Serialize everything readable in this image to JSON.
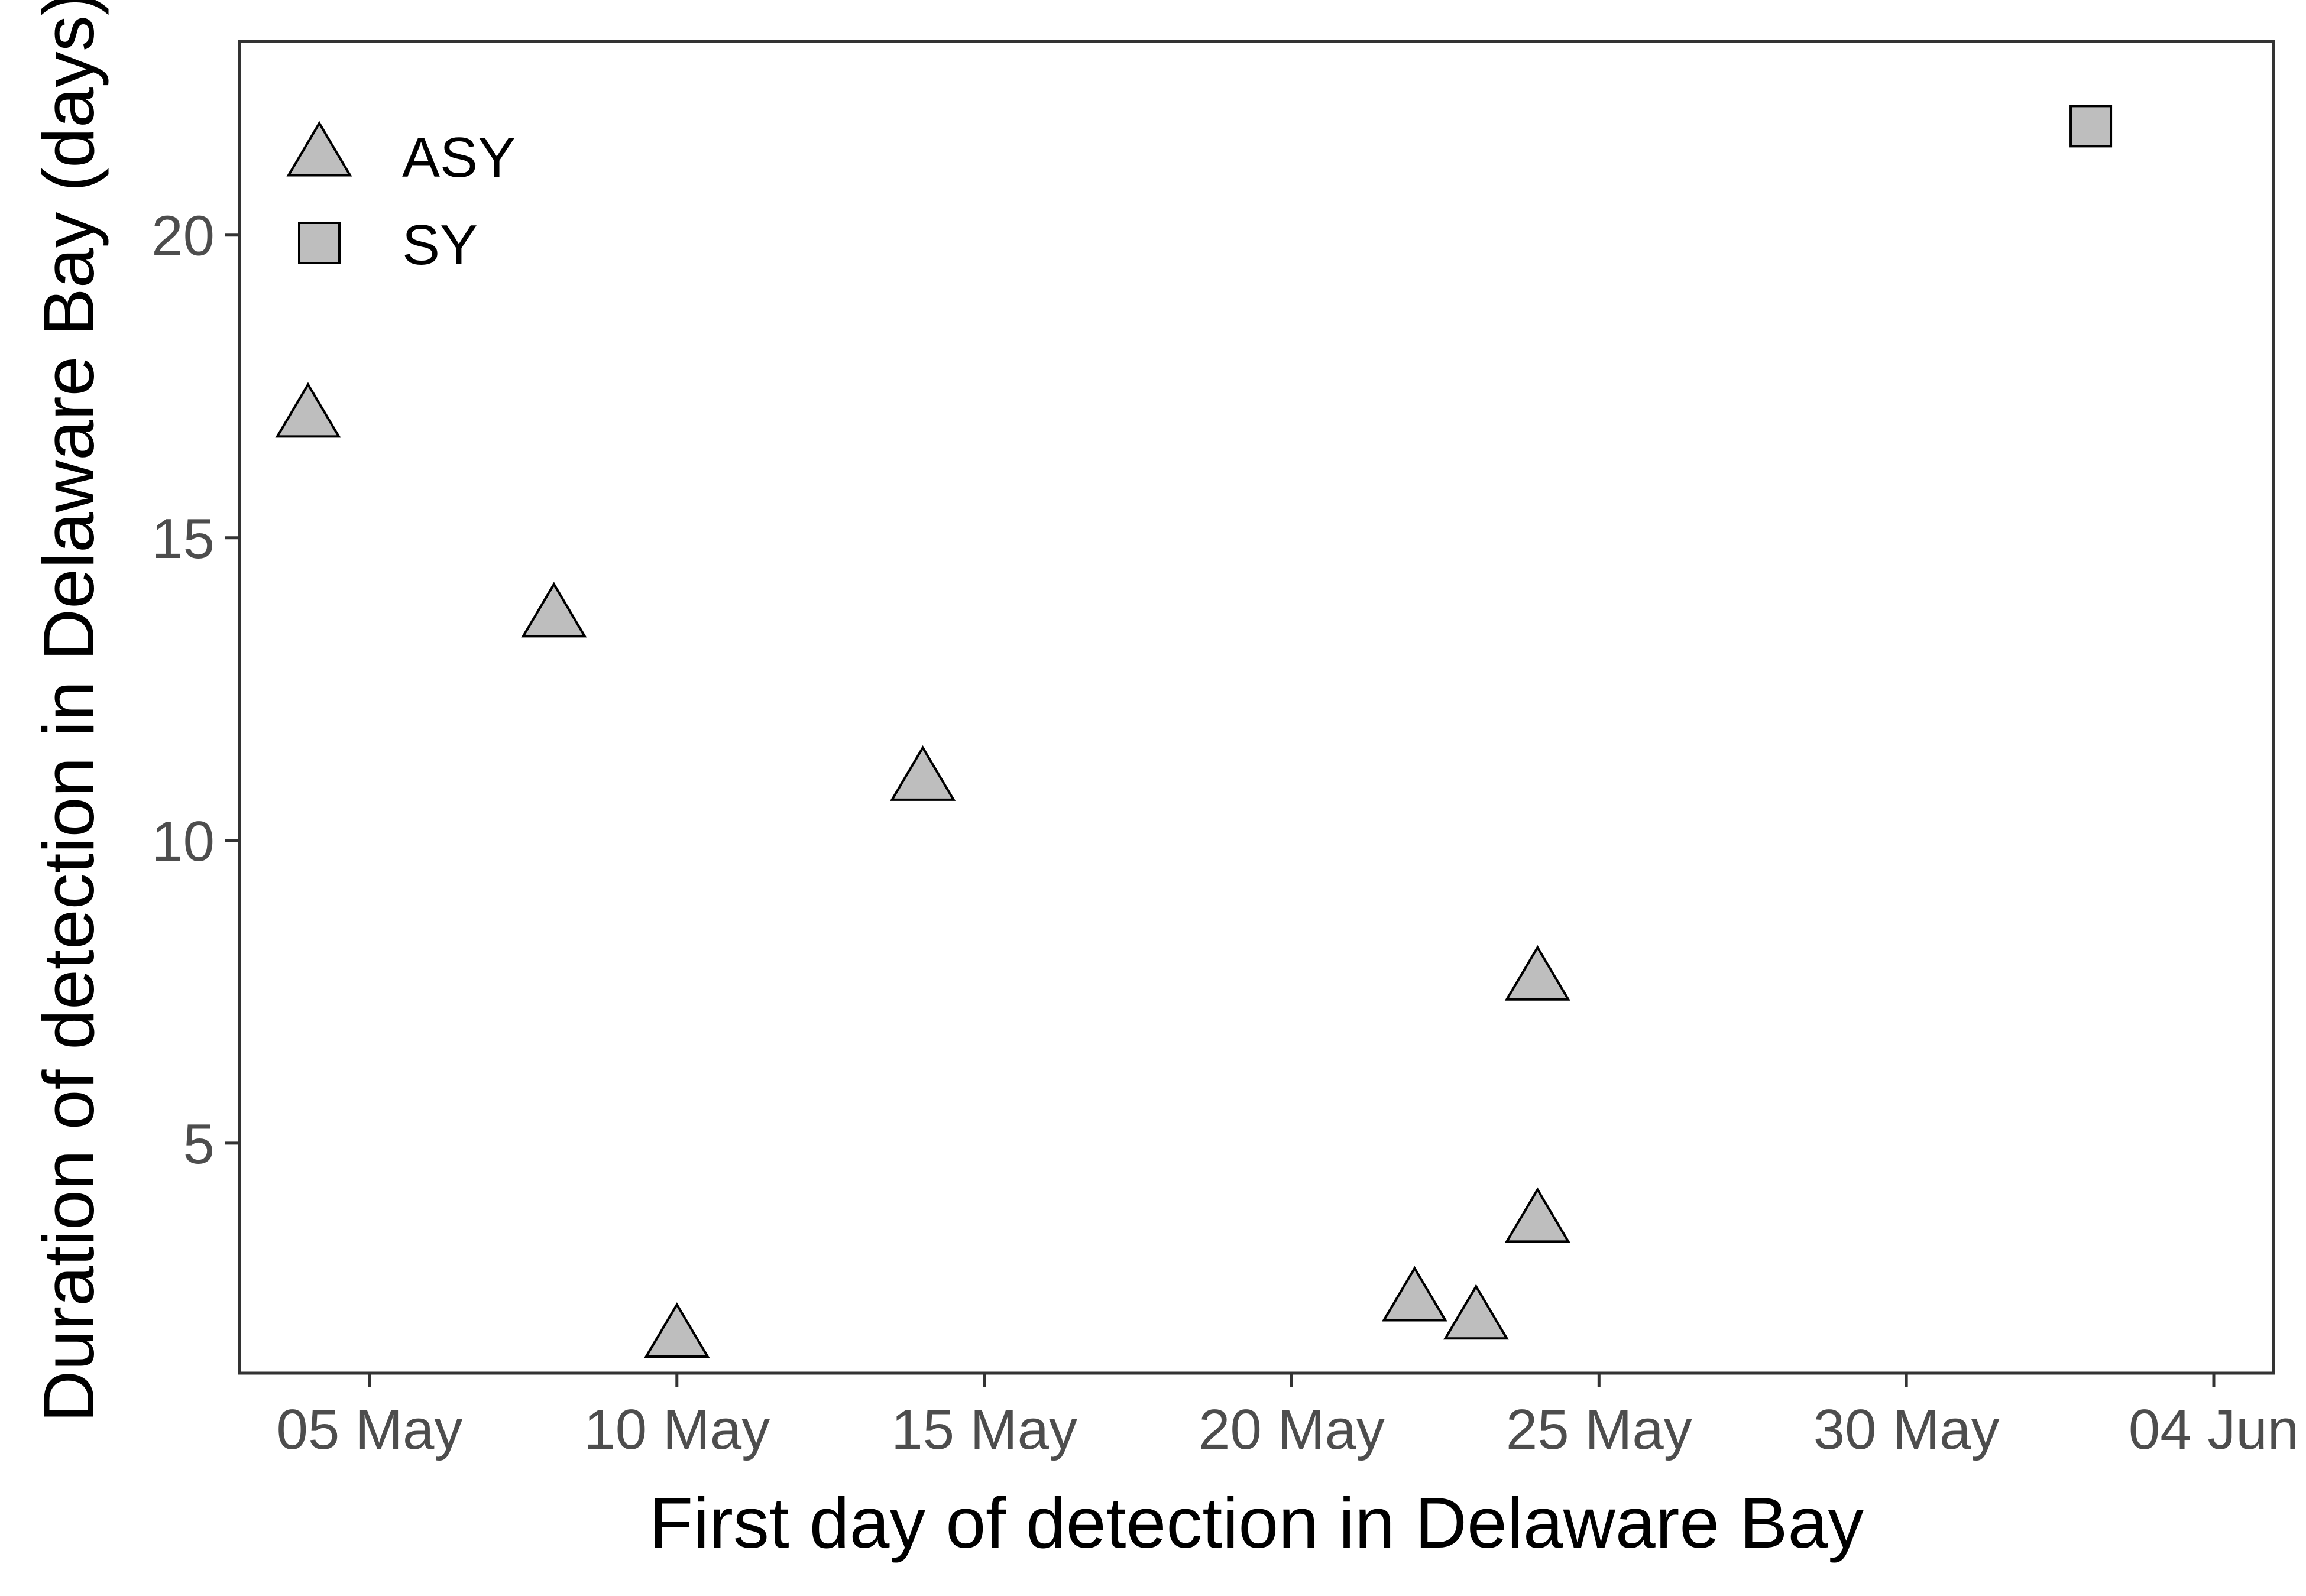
{
  "chart_data": {
    "type": "scatter",
    "title": "",
    "xlabel": "First day of detection in Delaware Bay",
    "ylabel": "Duration of detection in Delaware Bay (days)",
    "x_type": "date",
    "xlim": [
      "2019-05-03",
      "2019-06-04"
    ],
    "ylim": [
      1.2,
      23.2
    ],
    "x_ticks": [
      {
        "value": "2019-05-05",
        "label": "05 May"
      },
      {
        "value": "2019-05-10",
        "label": "10 May"
      },
      {
        "value": "2019-05-15",
        "label": "15 May"
      },
      {
        "value": "2019-05-20",
        "label": "20 May"
      },
      {
        "value": "2019-05-25",
        "label": "25 May"
      },
      {
        "value": "2019-05-30",
        "label": "30 May"
      },
      {
        "value": "2019-06-04",
        "label": "04 Jun"
      }
    ],
    "y_ticks": [
      {
        "value": 5,
        "label": "5"
      },
      {
        "value": 10,
        "label": "10"
      },
      {
        "value": 15,
        "label": "15"
      },
      {
        "value": 20,
        "label": "20"
      }
    ],
    "grid": false,
    "legend_position": "top-left inside",
    "series": [
      {
        "name": "ASY",
        "marker": "triangle",
        "fill": "#bebebe",
        "stroke": "#000000",
        "points": [
          {
            "x": "2019-05-04",
            "y": 17.0
          },
          {
            "x": "2019-05-08",
            "y": 13.7
          },
          {
            "x": "2019-05-10",
            "y": 1.8
          },
          {
            "x": "2019-05-14",
            "y": 11.0
          },
          {
            "x": "2019-05-22",
            "y": 2.4
          },
          {
            "x": "2019-05-23",
            "y": 2.1
          },
          {
            "x": "2019-05-24",
            "y": 7.7
          },
          {
            "x": "2019-05-24",
            "y": 3.7
          }
        ]
      },
      {
        "name": "SY",
        "marker": "square",
        "fill": "#bebebe",
        "stroke": "#000000",
        "points": [
          {
            "x": "2019-06-02",
            "y": 21.8
          }
        ]
      }
    ]
  }
}
